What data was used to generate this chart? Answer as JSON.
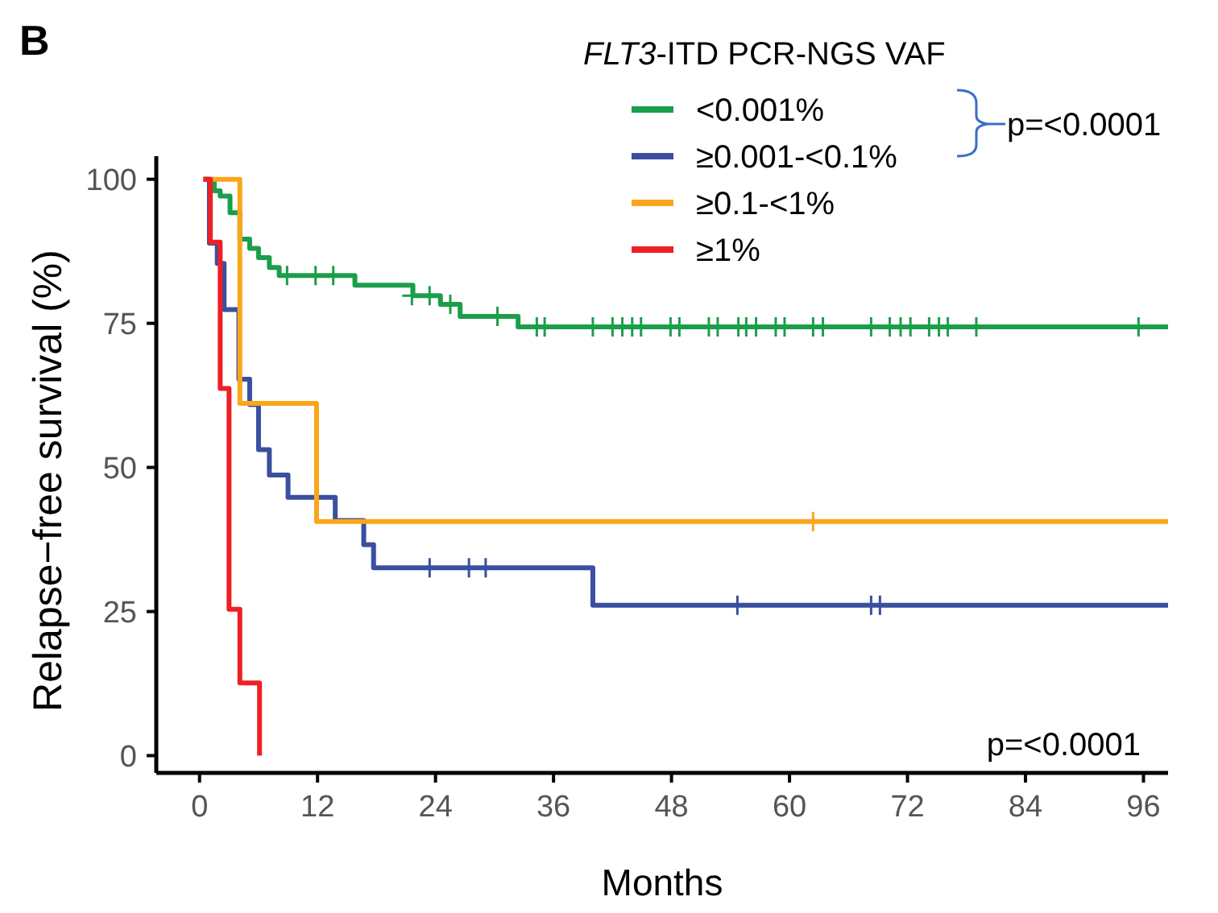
{
  "chart_data": {
    "type": "step",
    "xlabel": "Months",
    "ylabel": "Relapse−free survival (%)",
    "legend_title": "FLT3-ITD PCR-NGS VAF",
    "legend": "top right",
    "xlim": [
      -4.4,
      98.5
    ],
    "ylim": [
      -3,
      104
    ],
    "xticks": [
      0,
      12,
      24,
      36,
      48,
      60,
      72,
      84,
      96
    ],
    "yticks": [
      0,
      25,
      50,
      75,
      100
    ],
    "annotations": [
      "B",
      "p=<0.0001",
      "p=<0.0001"
    ],
    "series": [
      {
        "name": "<0.001%",
        "color": "#1b9e4b",
        "x": [
          0.4,
          1.5,
          2.1,
          3.1,
          4.1,
          5.1,
          6.0,
          7.1,
          8.1,
          15.8,
          21.7,
          24.5,
          26.5,
          32.4,
          98.5
        ],
        "values": [
          100,
          98,
          97.1,
          94.2,
          89.6,
          88,
          86.4,
          84.7,
          83.3,
          81.6,
          79.8,
          78.3,
          76.2,
          74.4,
          74.4
        ]
      },
      {
        "name": "≥0.001-<0.1%",
        "color": "#3a4fa0",
        "x": [
          0.4,
          1.0,
          1.8,
          2.5,
          4.0,
          5.1,
          6.0,
          7.1,
          9.0,
          13.8,
          16.7,
          17.7,
          40.0,
          98.5
        ],
        "values": [
          100,
          88.9,
          85.4,
          77.4,
          65.3,
          60.9,
          53.1,
          48.7,
          44.8,
          40.8,
          36.6,
          32.6,
          26.1,
          26.1
        ]
      },
      {
        "name": "≥0.1-<1%",
        "color": "#f9a61a",
        "x": [
          0.4,
          4.1,
          11.9,
          98.5
        ],
        "values": [
          100,
          61.1,
          40.6,
          40.6
        ]
      },
      {
        "name": "≥1%",
        "color": "#ee2025",
        "x": [
          0.4,
          1.1,
          2.1,
          3.0,
          4.1,
          6.1
        ],
        "values": [
          100,
          89.1,
          63.7,
          25.4,
          12.6,
          0
        ]
      },
      {
        "type": "scatter",
        "marker": "cross",
        "color": "#1b9e4b",
        "x": [
          8.9,
          11.8,
          13.6,
          21.6,
          23.4,
          25.5,
          30.3,
          34.3,
          35.1,
          40,
          42,
          43,
          44,
          44.9,
          47.9,
          48.8,
          51.8,
          52.7,
          54.8,
          55.6,
          56.6,
          58.6,
          59.5,
          62.4,
          63.4,
          68.3,
          70.2,
          71.3,
          72.3,
          74.2,
          75.2,
          76.1,
          79,
          95.5
        ],
        "values": [
          83.3,
          83.3,
          83.3,
          79.8,
          79.8,
          78.3,
          76.2,
          74.4,
          74.4,
          74.4,
          74.4,
          74.4,
          74.4,
          74.4,
          74.4,
          74.4,
          74.4,
          74.4,
          74.4,
          74.4,
          74.4,
          74.4,
          74.4,
          74.4,
          74.4,
          74.4,
          74.4,
          74.4,
          74.4,
          74.4,
          74.4,
          74.4,
          74.4,
          74.4
        ]
      },
      {
        "type": "scatter",
        "marker": "cross",
        "color": "#3a4fa0",
        "x": [
          23.4,
          27.4,
          29.1,
          54.7,
          68.3,
          69.2
        ],
        "values": [
          32.6,
          32.6,
          32.6,
          26.1,
          26.1,
          26.1
        ]
      },
      {
        "type": "scatter",
        "marker": "cross",
        "color": "#f9a61a",
        "x": [
          62.4
        ],
        "values": [
          40.6
        ]
      }
    ]
  }
}
